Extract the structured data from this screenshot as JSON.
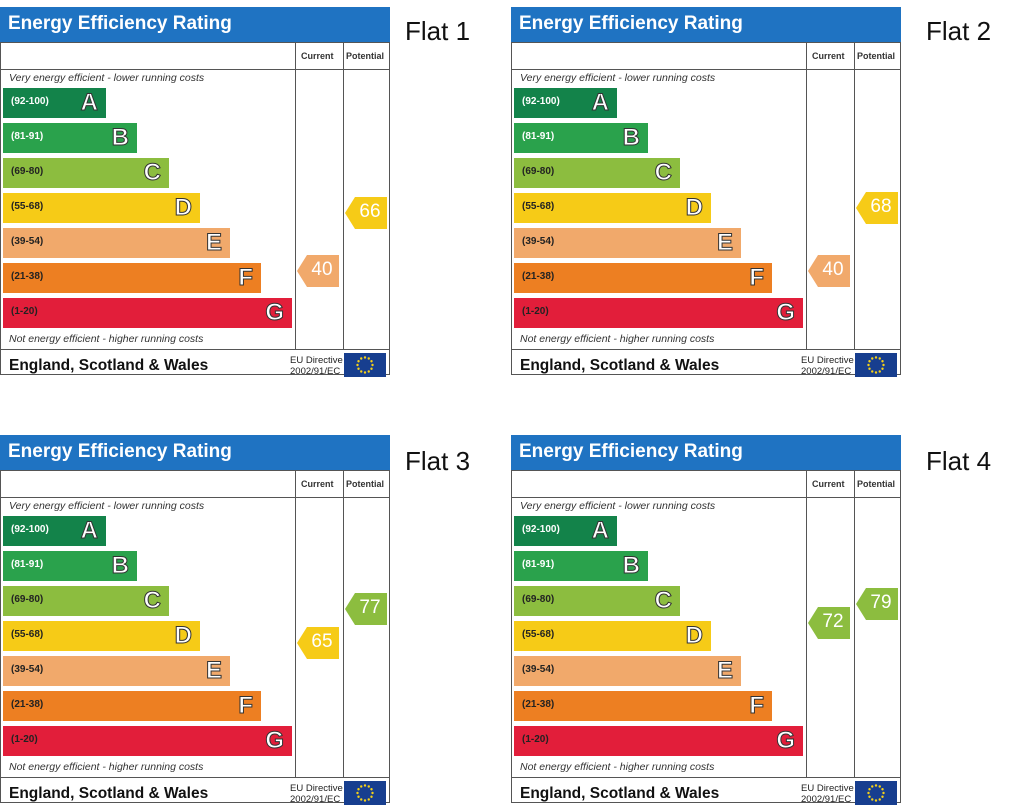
{
  "common": {
    "title": "Energy Efficiency Rating",
    "col_current": "Current",
    "col_potential": "Potential",
    "top_note": "Very energy efficient - lower running costs",
    "bottom_note": "Not energy efficient - higher running costs",
    "region": "England, Scotland & Wales",
    "eu_line1": "EU Directive",
    "eu_line2": "2002/91/EC"
  },
  "chart_data": {
    "type": "bar",
    "bands": [
      {
        "range": "(92-100)",
        "letter": "A",
        "color": "#13834a",
        "range_color": "#ffffff"
      },
      {
        "range": "(81-91)",
        "letter": "B",
        "color": "#2aa24c",
        "range_color": "#ffffff"
      },
      {
        "range": "(69-80)",
        "letter": "C",
        "color": "#8cbd3f",
        "range_color": "#222222"
      },
      {
        "range": "(55-68)",
        "letter": "D",
        "color": "#f6cb17",
        "range_color": "#222222"
      },
      {
        "range": "(39-54)",
        "letter": "E",
        "color": "#f1a96b",
        "range_color": "#222222"
      },
      {
        "range": "(21-38)",
        "letter": "F",
        "color": "#ed7f22",
        "range_color": "#222222"
      },
      {
        "range": "(1-20)",
        "letter": "G",
        "color": "#e21e3a",
        "range_color": "#222222"
      }
    ],
    "flats": [
      {
        "label": "Flat 1",
        "current": 40,
        "potential": 66
      },
      {
        "label": "Flat 2",
        "current": 40,
        "potential": 68
      },
      {
        "label": "Flat 3",
        "current": 65,
        "potential": 77
      },
      {
        "label": "Flat 4",
        "current": 72,
        "potential": 79
      }
    ]
  }
}
